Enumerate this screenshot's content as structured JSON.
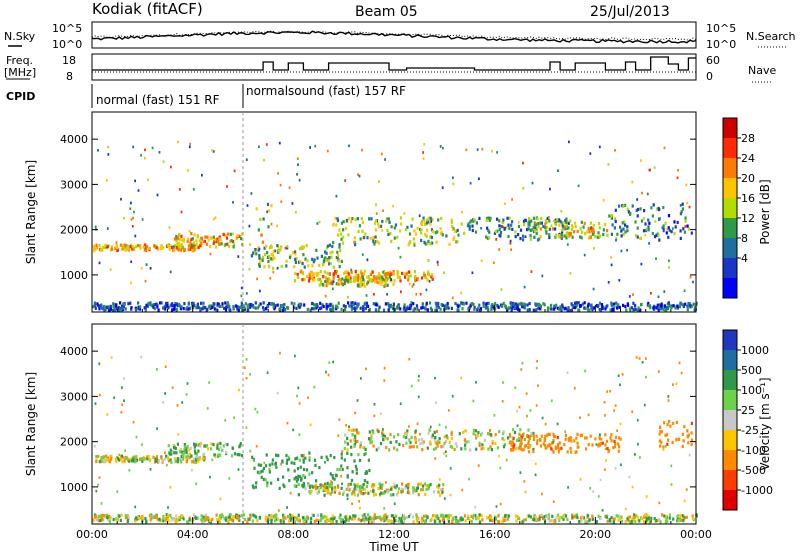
{
  "header": {
    "station": "Kodiak (fitACF)",
    "beam": "Beam 05",
    "date": "25/Jul/2013"
  },
  "noise_panel": {
    "left_label": "N.Sky",
    "right_label": "N.Search",
    "left_ticks": [
      "10^5",
      "10^0"
    ],
    "right_ticks": [
      "10^5",
      "10^0"
    ]
  },
  "freq_panel": {
    "left_label_1": "Freq.",
    "left_label_2": "[MHz]",
    "right_label": "Nave",
    "left_ticks": [
      "18",
      "8"
    ],
    "right_ticks": [
      "60",
      "0"
    ]
  },
  "cpid": {
    "label": "CPID",
    "segments": [
      {
        "text": "normal (fast) 151 RF",
        "start_hour": 0,
        "end_hour": 6
      },
      {
        "text": "normalsound (fast) 157 RF",
        "start_hour": 6,
        "end_hour": 24
      }
    ]
  },
  "power_colorbar": {
    "title": "Power [dB]",
    "ticks": [
      "28",
      "24",
      "20",
      "16",
      "12",
      "8",
      "4"
    ],
    "colors": [
      "#cc0000",
      "#ff2a00",
      "#ff7a00",
      "#ffc400",
      "#b0dc00",
      "#2e9a48",
      "#1e6fa0",
      "#1836c8",
      "#0000ff"
    ]
  },
  "velocity_colorbar": {
    "title": "Velocity [m s⁻¹]",
    "ticks": [
      "1000",
      "500",
      "100",
      "25",
      "-25",
      "-100",
      "-500",
      "-1000"
    ],
    "colors": [
      "#2038c0",
      "#1e6fa0",
      "#2e9a48",
      "#6cd24a",
      "#c8c8c8",
      "#ffc400",
      "#ff8a00",
      "#ff3c00",
      "#e00000"
    ]
  },
  "chart_data": [
    {
      "type": "heatmap",
      "ylabel": "Slant Range [km]",
      "xlabel": "Time UT",
      "quantity": "Power [dB]",
      "x_ticks": [
        "00:00",
        "04:00",
        "08:00",
        "12:00",
        "16:00",
        "20:00",
        "00:00"
      ],
      "xlim": [
        0,
        24
      ],
      "y_ticks": [
        "1000",
        "2000",
        "3000",
        "4000"
      ],
      "ylim": [
        180,
        4600
      ],
      "bands": [
        {
          "t": [
            0,
            4.3
          ],
          "r": [
            1570,
            1700
          ],
          "value": 22
        },
        {
          "t": [
            3.2,
            6.0
          ],
          "r": [
            1650,
            1950
          ],
          "value": 20
        },
        {
          "t": [
            6.3,
            10.0
          ],
          "r": [
            1200,
            1700
          ],
          "value": 14
        },
        {
          "t": [
            8.0,
            13.5
          ],
          "r": [
            900,
            1120
          ],
          "value": 22
        },
        {
          "t": [
            9.0,
            12.0
          ],
          "r": [
            780,
            1000
          ],
          "value": 18
        },
        {
          "t": [
            9.5,
            14.5
          ],
          "r": [
            1700,
            2300
          ],
          "value": 14
        },
        {
          "t": [
            14.5,
            19.0
          ],
          "r": [
            1800,
            2300
          ],
          "value": 10
        },
        {
          "t": [
            17.5,
            20.5
          ],
          "r": [
            1850,
            2200
          ],
          "value": 18
        },
        {
          "t": [
            20.5,
            23.8
          ],
          "r": [
            1800,
            2600
          ],
          "value": 8
        },
        {
          "t": [
            0,
            24
          ],
          "r": [
            250,
            420
          ],
          "value": 6
        },
        {
          "t": [
            6.5,
            7.2
          ],
          "r": [
            1100,
            2600
          ],
          "value": 16
        }
      ]
    },
    {
      "type": "heatmap",
      "ylabel": "Slant Range [km]",
      "xlabel": "Time UT",
      "quantity": "Velocity [m s⁻¹]",
      "x_ticks": [
        "00:00",
        "04:00",
        "08:00",
        "12:00",
        "16:00",
        "20:00",
        "00:00"
      ],
      "xlim": [
        0,
        24
      ],
      "y_ticks": [
        "1000",
        "2000",
        "3000",
        "4000"
      ],
      "ylim": [
        180,
        4600
      ],
      "bands": [
        {
          "t": [
            0,
            4.5
          ],
          "r": [
            1580,
            1720
          ],
          "value": 0
        },
        {
          "t": [
            3.0,
            6.0
          ],
          "r": [
            1700,
            2000
          ],
          "value": 80
        },
        {
          "t": [
            6.3,
            11.0
          ],
          "r": [
            1000,
            1800
          ],
          "value": 150
        },
        {
          "t": [
            8.0,
            14.0
          ],
          "r": [
            850,
            1100
          ],
          "value": 0
        },
        {
          "t": [
            10.0,
            17.5
          ],
          "r": [
            1850,
            2300
          ],
          "value": 0
        },
        {
          "t": [
            16.5,
            21.0
          ],
          "r": [
            1800,
            2200
          ],
          "value": -200
        },
        {
          "t": [
            22.5,
            23.8
          ],
          "r": [
            1900,
            2500
          ],
          "value": -200
        },
        {
          "t": [
            0,
            24
          ],
          "r": [
            260,
            420
          ],
          "value": 10
        }
      ]
    }
  ]
}
